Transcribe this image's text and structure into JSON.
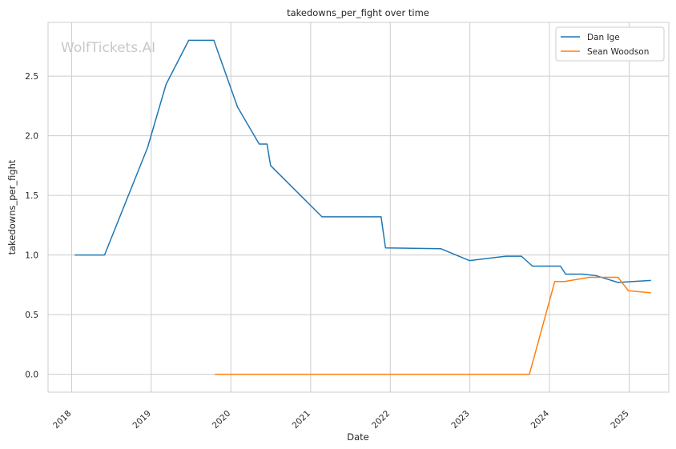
{
  "chart_data": {
    "type": "line",
    "title": "takedowns_per_fight over time",
    "xlabel": "Date",
    "ylabel": "takedowns_per_fight",
    "watermark": "WolfTickets.AI",
    "x_ticks": [
      "2018",
      "2019",
      "2020",
      "2021",
      "2022",
      "2023",
      "2024",
      "2025"
    ],
    "y_ticks": [
      "0.0",
      "0.5",
      "1.0",
      "1.5",
      "2.0",
      "2.5"
    ],
    "xlim": [
      "2017-09-15",
      "2025-07-01"
    ],
    "ylim": [
      -0.15,
      2.95
    ],
    "grid": true,
    "legend_position": "top-right",
    "series": [
      {
        "name": "Dan Ige",
        "color": "#1f77b4",
        "points": [
          [
            "2018-01-15",
            1.0
          ],
          [
            "2018-06-01",
            1.0
          ],
          [
            "2018-12-15",
            1.9
          ],
          [
            "2019-03-10",
            2.43
          ],
          [
            "2019-06-22",
            2.8
          ],
          [
            "2019-10-15",
            2.8
          ],
          [
            "2020-02-01",
            2.24
          ],
          [
            "2020-05-10",
            1.93
          ],
          [
            "2020-06-15",
            1.93
          ],
          [
            "2020-07-01",
            1.75
          ],
          [
            "2021-02-22",
            1.32
          ],
          [
            "2021-06-01",
            1.32
          ],
          [
            "2021-11-20",
            1.32
          ],
          [
            "2021-12-10",
            1.06
          ],
          [
            "2022-08-20",
            1.053
          ],
          [
            "2022-12-30",
            0.953
          ],
          [
            "2023-06-15",
            0.99
          ],
          [
            "2023-08-25",
            0.99
          ],
          [
            "2023-10-15",
            0.907
          ],
          [
            "2024-02-20",
            0.907
          ],
          [
            "2024-03-15",
            0.84
          ],
          [
            "2024-06-01",
            0.84
          ],
          [
            "2024-08-01",
            0.827
          ],
          [
            "2024-11-10",
            0.77
          ],
          [
            "2025-04-10",
            0.787
          ]
        ]
      },
      {
        "name": "Sean Woodson",
        "color": "#ff7f0e",
        "points": [
          [
            "2019-10-20",
            0.0
          ],
          [
            "2023-10-01",
            0.0
          ],
          [
            "2024-01-25",
            0.777
          ],
          [
            "2024-03-10",
            0.777
          ],
          [
            "2024-07-01",
            0.813
          ],
          [
            "2024-11-10",
            0.813
          ],
          [
            "2024-12-28",
            0.7
          ],
          [
            "2025-04-10",
            0.683
          ]
        ]
      }
    ]
  }
}
